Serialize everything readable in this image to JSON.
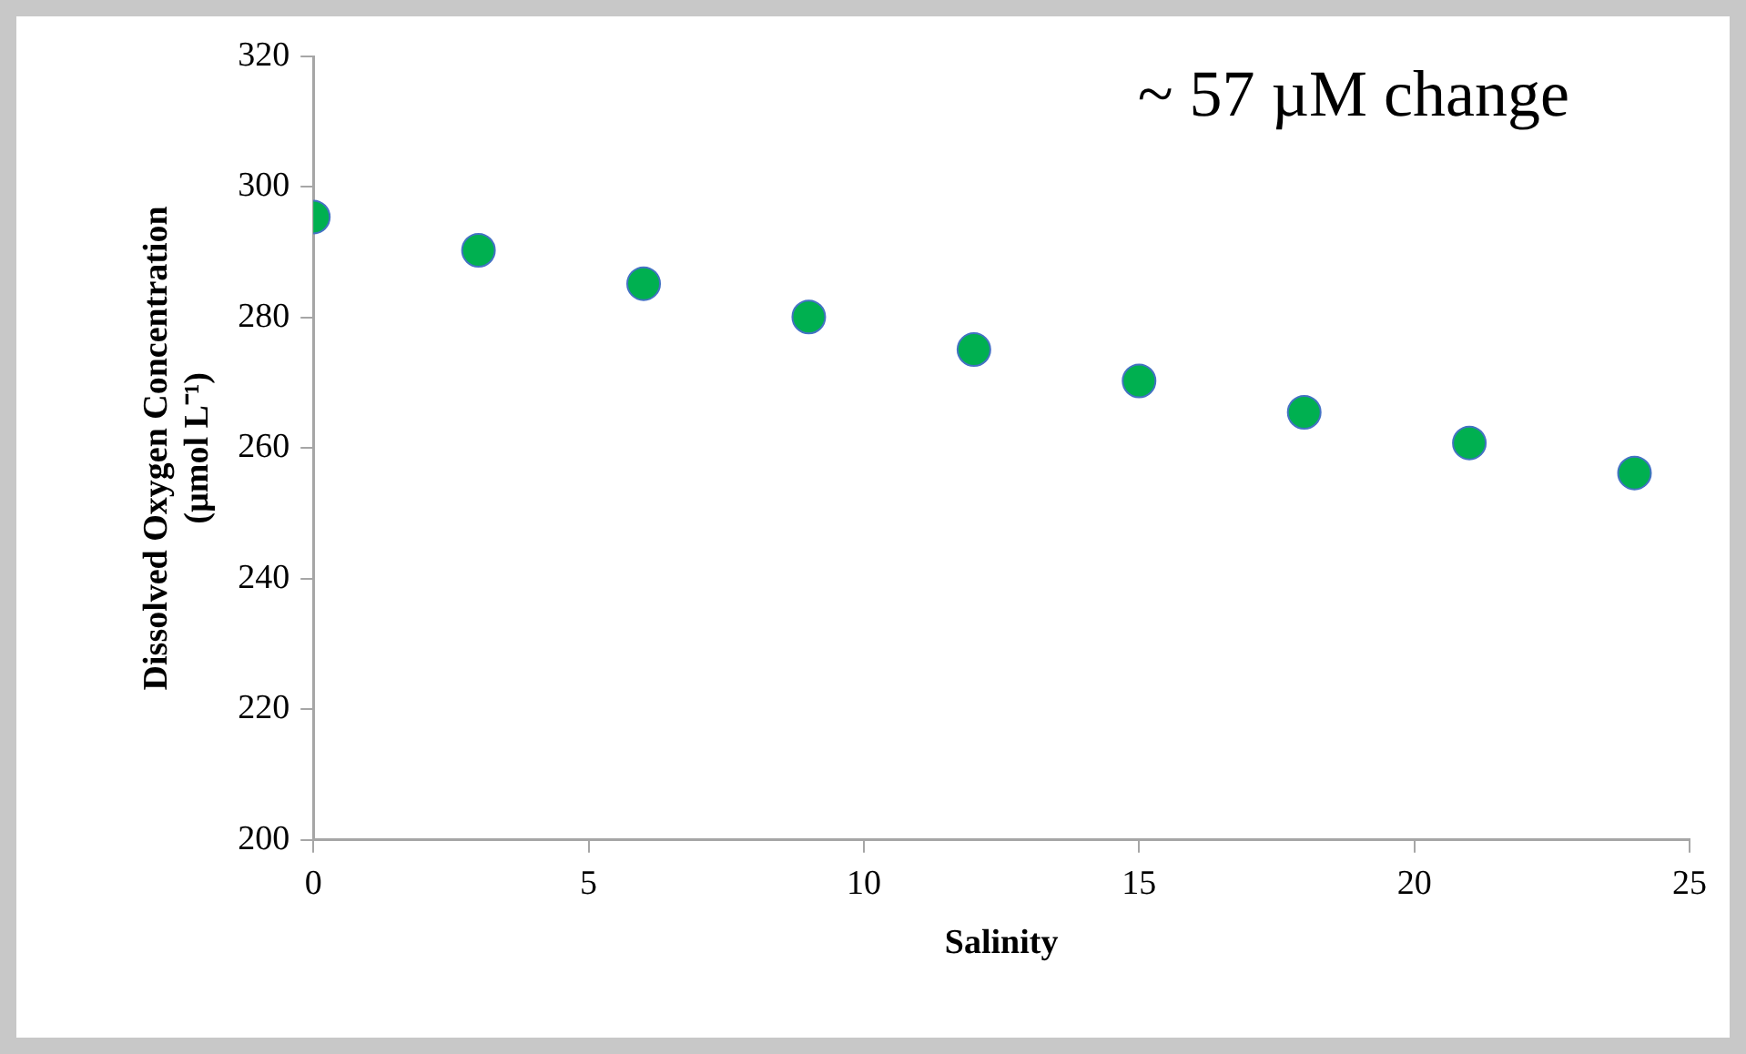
{
  "chart_data": {
    "type": "scatter",
    "xlabel": "Salinity",
    "ylabel": "Dissolved Oxygen Concentration (µmol L⁻¹)",
    "annotations": [
      "~ 57 µM change"
    ],
    "x": [
      0,
      3,
      6,
      9,
      12,
      15,
      18,
      21,
      24
    ],
    "series": [
      {
        "color": "#00b050",
        "values": [
          295.4,
          290.3,
          285.2,
          280.1,
          275.1,
          270.3,
          265.5,
          260.8,
          256.2
        ]
      }
    ],
    "xlim": [
      0,
      25
    ],
    "xticks": [
      0,
      5,
      10,
      15,
      20,
      25
    ],
    "ylim": [
      200,
      320
    ],
    "yticks": [
      200,
      220,
      240,
      260,
      280,
      300,
      320
    ],
    "grid": false,
    "legend": false,
    "marker": "circle"
  }
}
